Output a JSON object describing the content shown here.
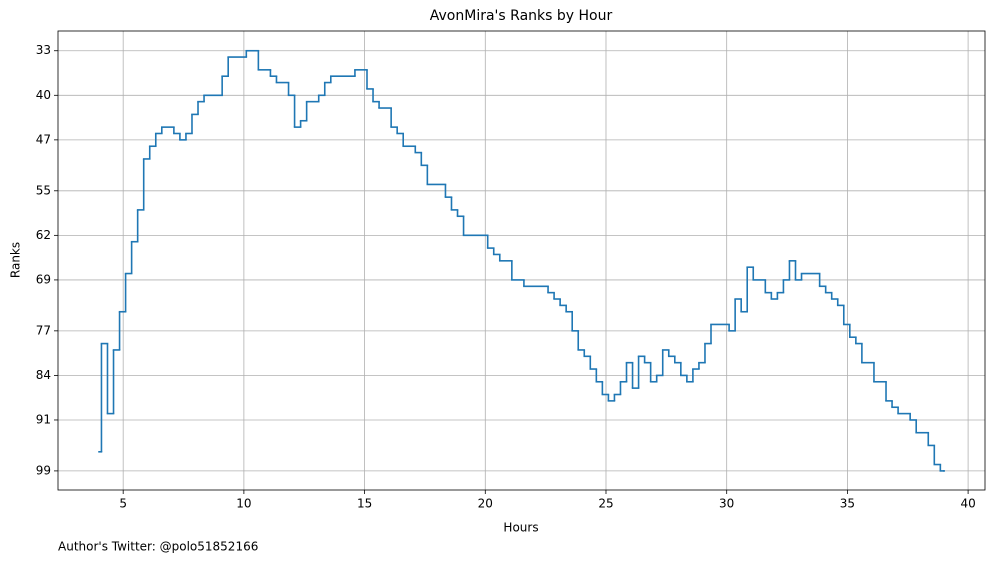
{
  "chart_data": {
    "type": "step",
    "title": "AvonMira's Ranks by Hour",
    "x_label": "Hours",
    "y_label": "Ranks",
    "footnote": "Author's Twitter: @polo51852166",
    "x": [
      4.0,
      4.1,
      4.35,
      4.6,
      4.85,
      5.1,
      5.35,
      5.6,
      5.85,
      6.1,
      6.35,
      6.6,
      7.1,
      7.35,
      7.6,
      7.85,
      8.1,
      8.35,
      9.1,
      9.35,
      10.1,
      10.6,
      11.1,
      11.35,
      11.85,
      12.1,
      12.35,
      12.6,
      13.1,
      13.35,
      13.6,
      14.6,
      15.1,
      15.35,
      15.6,
      16.1,
      16.35,
      16.6,
      17.1,
      17.35,
      17.6,
      18.35,
      18.6,
      18.85,
      19.1,
      20.1,
      20.35,
      20.6,
      21.1,
      21.6,
      22.6,
      22.85,
      23.1,
      23.35,
      23.6,
      23.85,
      24.1,
      24.35,
      24.6,
      24.85,
      25.1,
      25.35,
      25.6,
      25.85,
      26.1,
      26.35,
      26.6,
      26.85,
      27.1,
      27.35,
      27.6,
      27.85,
      28.1,
      28.35,
      28.6,
      28.85,
      29.1,
      29.35,
      30.1,
      30.35,
      30.6,
      30.85,
      31.1,
      31.6,
      31.85,
      32.1,
      32.35,
      32.6,
      32.85,
      33.1,
      33.85,
      34.1,
      34.35,
      34.6,
      34.85,
      35.1,
      35.35,
      35.6,
      36.1,
      36.6,
      36.85,
      37.1,
      37.6,
      37.85,
      38.35,
      38.6,
      38.85,
      39.0
    ],
    "values": [
      96,
      79,
      90,
      80,
      74,
      68,
      63,
      58,
      50,
      48,
      46,
      45,
      46,
      47,
      46,
      43,
      41,
      40,
      37,
      34,
      33,
      36,
      37,
      38,
      40,
      45,
      44,
      41,
      40,
      38,
      37,
      36,
      39,
      41,
      42,
      45,
      46,
      48,
      49,
      51,
      54,
      56,
      58,
      59,
      62,
      64,
      65,
      66,
      69,
      70,
      71,
      72,
      73,
      74,
      77,
      80,
      81,
      83,
      85,
      87,
      88,
      87,
      85,
      82,
      86,
      81,
      82,
      85,
      84,
      80,
      81,
      82,
      84,
      85,
      83,
      82,
      79,
      76,
      77,
      72,
      74,
      67,
      69,
      71,
      72,
      71,
      69,
      66,
      69,
      68,
      70,
      71,
      72,
      73,
      76,
      78,
      79,
      82,
      85,
      88,
      89,
      90,
      91,
      93,
      95,
      98,
      99,
      99
    ],
    "color": "#1f77b4",
    "xlim": [
      2.3,
      40.7
    ],
    "xticks": [
      5,
      10,
      15,
      20,
      25,
      30,
      35,
      40
    ],
    "ylim": [
      102,
      29.9
    ],
    "yticks": [
      33,
      40,
      47,
      55,
      62,
      69,
      77,
      84,
      91,
      99
    ],
    "grid": true
  }
}
